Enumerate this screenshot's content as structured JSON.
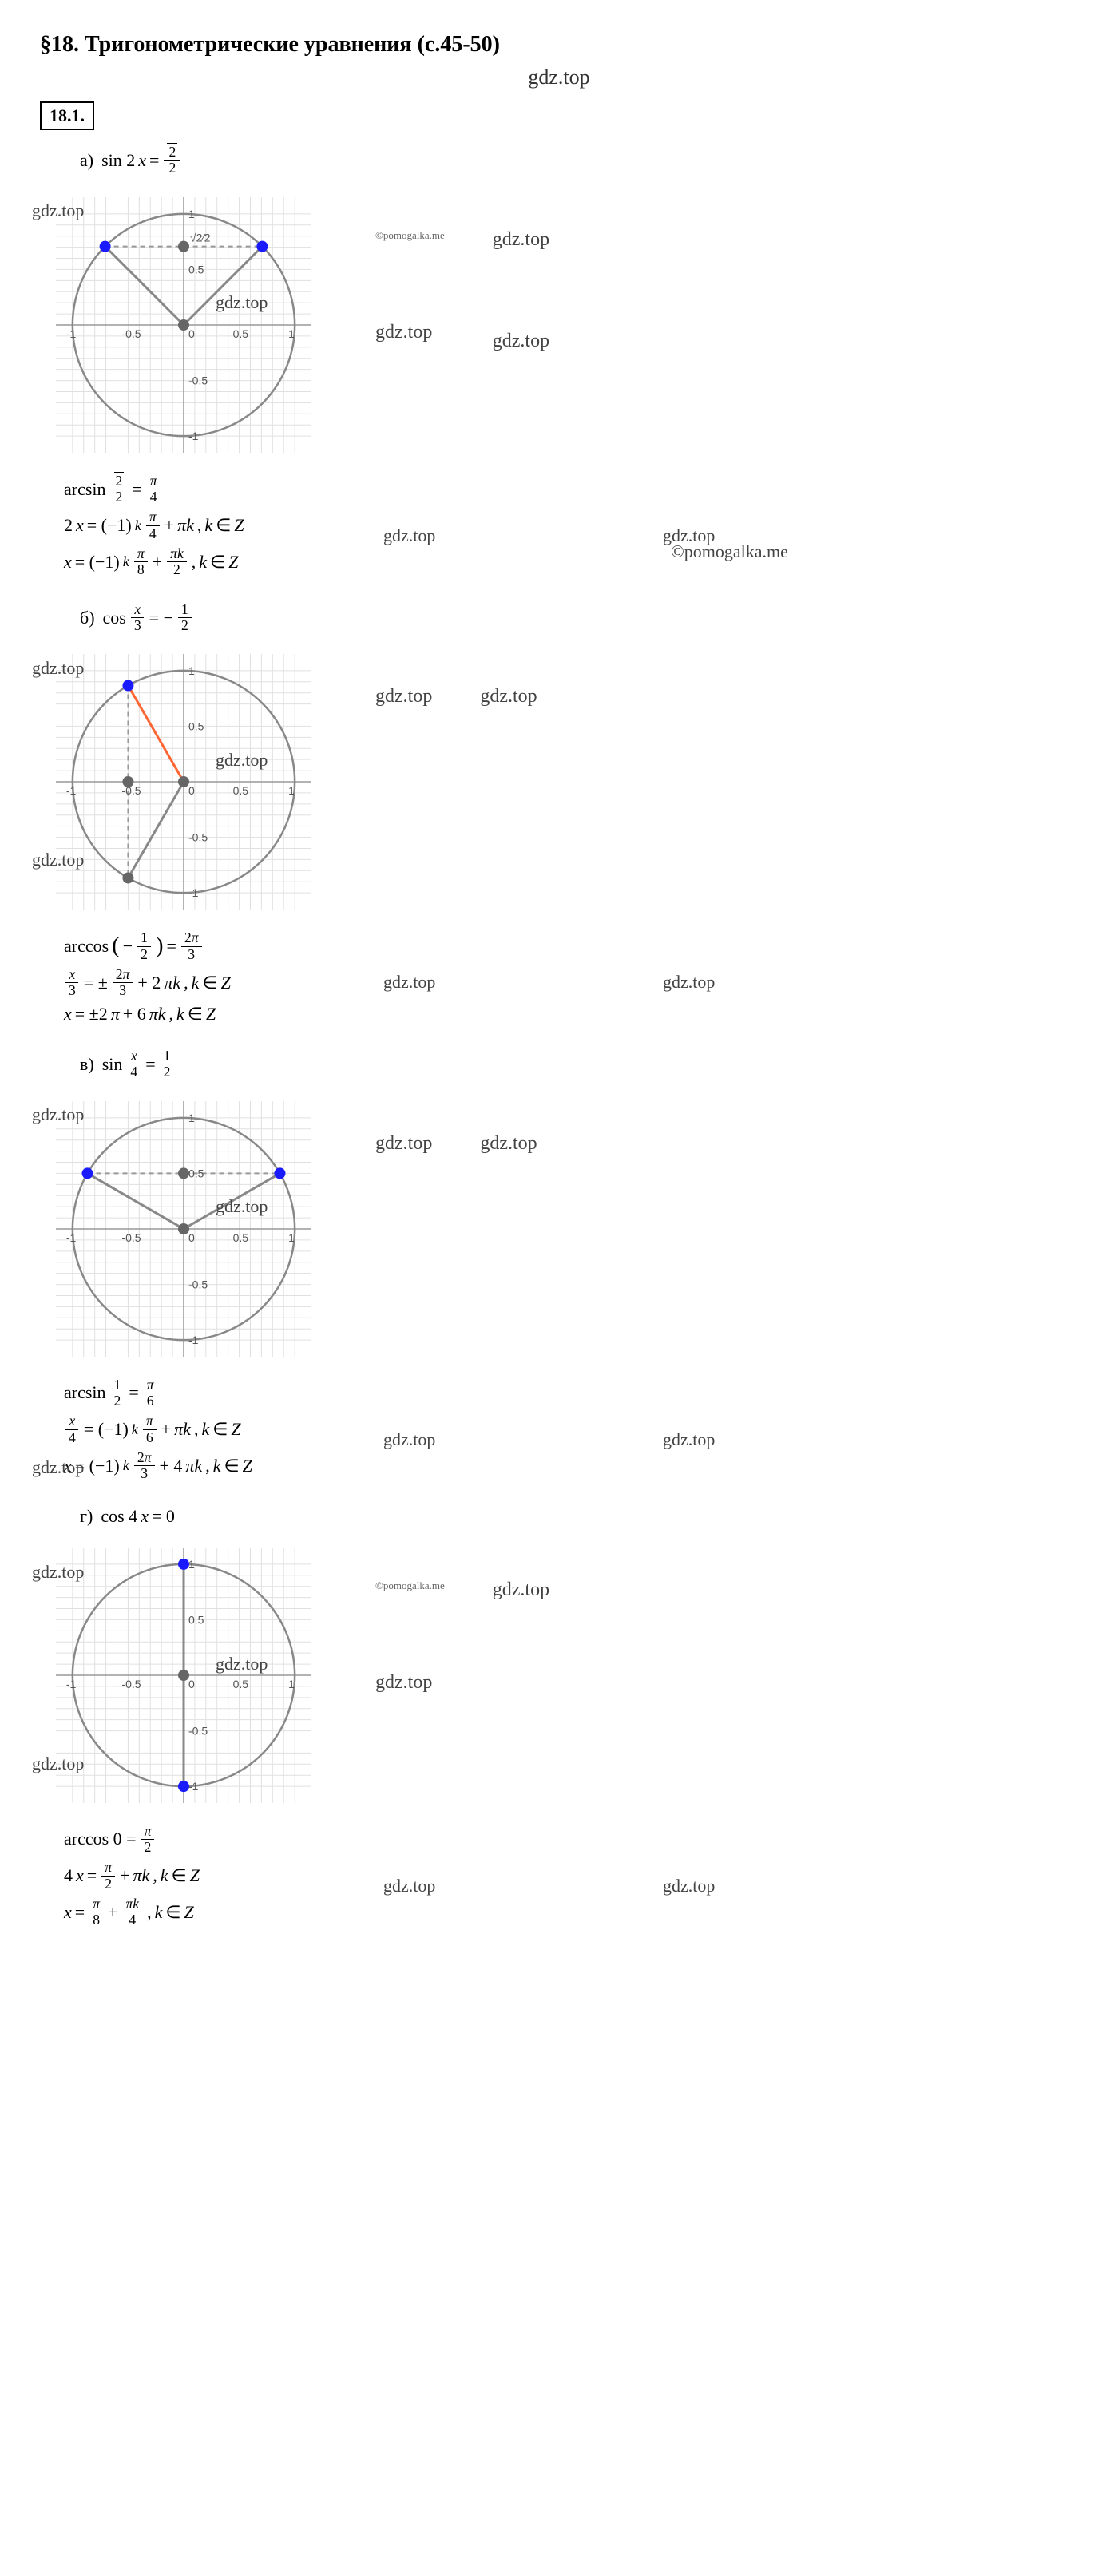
{
  "header": {
    "title": "§18. Тригонометрические уравнения (с.45-50)",
    "watermark_top": "gdz.top",
    "problem_number": "18.1."
  },
  "watermarks": {
    "main": "gdz.top",
    "credit": "©pomogalka.me"
  },
  "parts": {
    "a": {
      "letter": "а)",
      "equation_html": "sin 2<i>x</i> = <span class='frac'><span class='num'><span class='sqrt'>2</span></span><span class='den'>2</span></span>",
      "chart": {
        "size": 360,
        "circle_color": "#888",
        "grid_color": "#e0e0e0",
        "axis_color": "#999",
        "bg": "#ffffff",
        "xlim": [
          -1.15,
          1.15
        ],
        "ylim": [
          -1.15,
          1.15
        ],
        "ticks": [
          -1,
          -0.5,
          0,
          0.5,
          1
        ],
        "y_level": 0.7071,
        "y_level_label": "√2⁄2",
        "points": [
          {
            "x": -0.7071,
            "y": 0.7071,
            "color": "#1a1aff"
          },
          {
            "x": 0.7071,
            "y": 0.7071,
            "color": "#1a1aff"
          },
          {
            "x": 0,
            "y": 0.7071,
            "color": "#666"
          },
          {
            "x": 0,
            "y": 0,
            "color": "#666"
          }
        ],
        "lines": [
          {
            "from": [
              0,
              0
            ],
            "to": [
              -0.7071,
              0.7071
            ],
            "color": "#888",
            "w": 3
          },
          {
            "from": [
              0,
              0
            ],
            "to": [
              0.7071,
              0.7071
            ],
            "color": "#888",
            "w": 3
          },
          {
            "from": [
              -0.7071,
              0.7071
            ],
            "to": [
              0.7071,
              0.7071
            ],
            "color": "#999",
            "dash": "6,5",
            "w": 2
          }
        ]
      },
      "solution": [
        "arcsin <span class='frac'><span class='num'><span class='sqrt'>2</span></span><span class='den'>2</span></span> = <span class='frac'><span class='num'><i>π</i></span><span class='den'>4</span></span>",
        "2<i>x</i> = (−1)<sup><i>k</i></sup> <span class='frac'><span class='num'><i>π</i></span><span class='den'>4</span></span> + <i>πk</i>, <i>k</i> ∈ <i>Z</i>",
        "<i>x</i> = (−1)<sup><i>k</i></sup> <span class='frac'><span class='num'><i>π</i></span><span class='den'>8</span></span> + <span class='frac'><span class='num'><i>πk</i></span><span class='den'>2</span></span>, <i>k</i> ∈ <i>Z</i>"
      ]
    },
    "b": {
      "letter": "б)",
      "equation_html": "cos <span class='frac'><span class='num'><i>x</i></span><span class='den'>3</span></span> = − <span class='frac'><span class='num'>1</span><span class='den'>2</span></span>",
      "chart": {
        "size": 360,
        "circle_color": "#888",
        "grid_color": "#e0e0e0",
        "axis_color": "#999",
        "bg": "#ffffff",
        "xlim": [
          -1.15,
          1.15
        ],
        "ylim": [
          -1.15,
          1.15
        ],
        "ticks": [
          -1,
          -0.5,
          0,
          0.5,
          1
        ],
        "x_level": -0.5,
        "points": [
          {
            "x": -0.5,
            "y": 0.866,
            "color": "#1a1aff"
          },
          {
            "x": -0.5,
            "y": -0.866,
            "color": "#666"
          },
          {
            "x": -0.5,
            "y": 0,
            "color": "#666"
          },
          {
            "x": 0,
            "y": 0,
            "color": "#666"
          }
        ],
        "lines": [
          {
            "from": [
              0,
              0
            ],
            "to": [
              -0.5,
              0.866
            ],
            "color": "#ff6633",
            "w": 3
          },
          {
            "from": [
              0,
              0
            ],
            "to": [
              -0.5,
              -0.866
            ],
            "color": "#888",
            "w": 3
          },
          {
            "from": [
              -0.5,
              0.866
            ],
            "to": [
              -0.5,
              -0.866
            ],
            "color": "#999",
            "dash": "6,5",
            "w": 2
          }
        ]
      },
      "solution": [
        "arccos <span style='font-size:1.3em'>(</span>− <span class='frac'><span class='num'>1</span><span class='den'>2</span></span><span style='font-size:1.3em'>)</span> = <span class='frac'><span class='num'>2<i>π</i></span><span class='den'>3</span></span>",
        "<span class='frac'><span class='num'><i>x</i></span><span class='den'>3</span></span> = ± <span class='frac'><span class='num'>2<i>π</i></span><span class='den'>3</span></span> + 2<i>πk</i>, <i>k</i> ∈ <i>Z</i>",
        "<i>x</i> = ±2<i>π</i> + 6<i>πk</i>, <i>k</i> ∈ <i>Z</i>"
      ]
    },
    "c": {
      "letter": "в)",
      "equation_html": "sin <span class='frac'><span class='num'><i>x</i></span><span class='den'>4</span></span> = <span class='frac'><span class='num'>1</span><span class='den'>2</span></span>",
      "chart": {
        "size": 360,
        "circle_color": "#888",
        "grid_color": "#e0e0e0",
        "axis_color": "#999",
        "bg": "#ffffff",
        "xlim": [
          -1.15,
          1.15
        ],
        "ylim": [
          -1.15,
          1.15
        ],
        "ticks": [
          -1,
          -0.5,
          0,
          0.5,
          1
        ],
        "y_level": 0.5,
        "points": [
          {
            "x": -0.866,
            "y": 0.5,
            "color": "#1a1aff"
          },
          {
            "x": 0.866,
            "y": 0.5,
            "color": "#1a1aff"
          },
          {
            "x": 0,
            "y": 0.5,
            "color": "#666"
          },
          {
            "x": 0,
            "y": 0,
            "color": "#666"
          }
        ],
        "lines": [
          {
            "from": [
              0,
              0
            ],
            "to": [
              -0.866,
              0.5
            ],
            "color": "#888",
            "w": 3
          },
          {
            "from": [
              0,
              0
            ],
            "to": [
              0.866,
              0.5
            ],
            "color": "#888",
            "w": 3
          },
          {
            "from": [
              -0.866,
              0.5
            ],
            "to": [
              0.866,
              0.5
            ],
            "color": "#999",
            "dash": "6,5",
            "w": 2
          }
        ]
      },
      "solution": [
        "arcsin <span class='frac'><span class='num'>1</span><span class='den'>2</span></span> = <span class='frac'><span class='num'><i>π</i></span><span class='den'>6</span></span>",
        "<span class='frac'><span class='num'><i>x</i></span><span class='den'>4</span></span> = (−1)<sup><i>k</i></sup> <span class='frac'><span class='num'><i>π</i></span><span class='den'>6</span></span> + <i>πk</i>, <i>k</i> ∈ <i>Z</i>",
        "<i>x</i> = (−1)<sup><i>k</i></sup> <span class='frac'><span class='num'>2<i>π</i></span><span class='den'>3</span></span> + 4<i>πk</i>, <i>k</i> ∈ <i>Z</i>"
      ]
    },
    "d": {
      "letter": "г)",
      "equation_html": "cos 4<i>x</i> = 0",
      "chart": {
        "size": 360,
        "circle_color": "#888",
        "grid_color": "#e0e0e0",
        "axis_color": "#999",
        "bg": "#ffffff",
        "xlim": [
          -1.15,
          1.15
        ],
        "ylim": [
          -1.15,
          1.15
        ],
        "ticks": [
          -1,
          -0.5,
          0,
          0.5,
          1
        ],
        "x_level": 0,
        "points": [
          {
            "x": 0,
            "y": 1,
            "color": "#1a1aff"
          },
          {
            "x": 0,
            "y": -1,
            "color": "#1a1aff"
          },
          {
            "x": 0,
            "y": 0,
            "color": "#666"
          }
        ],
        "lines": [
          {
            "from": [
              0,
              0
            ],
            "to": [
              0,
              1
            ],
            "color": "#888",
            "w": 3
          },
          {
            "from": [
              0,
              0
            ],
            "to": [
              0,
              -1
            ],
            "color": "#888",
            "w": 3
          }
        ]
      },
      "solution": [
        "arccos 0 = <span class='frac'><span class='num'><i>π</i></span><span class='den'>2</span></span>",
        "4<i>x</i> = <span class='frac'><span class='num'><i>π</i></span><span class='den'>2</span></span> + <i>πk</i>, <i>k</i> ∈ <i>Z</i>",
        "<i>x</i> = <span class='frac'><span class='num'><i>π</i></span><span class='den'>8</span></span> + <span class='frac'><span class='num'><i>πk</i></span><span class='den'>4</span></span>, <i>k</i> ∈ <i>Z</i>"
      ]
    }
  }
}
